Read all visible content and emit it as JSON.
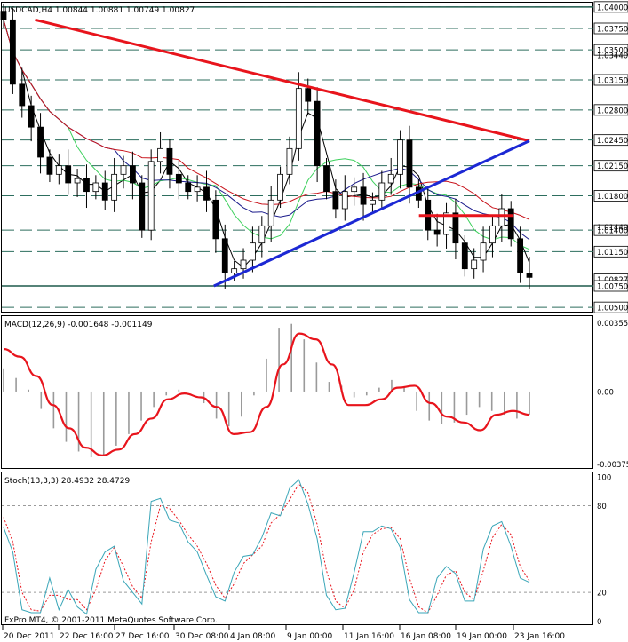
{
  "chart_data": [
    {
      "type": "line",
      "header": "USDCAD,H4  1.00844 1.00881 1.00749 1.00827",
      "price_labels": [
        "1.04000",
        "1.03750",
        "1.03500",
        "1.03150",
        "1.02800",
        "1.02450",
        "1.02150",
        "1.01800",
        "1.01400",
        "1.01150",
        "1.00827",
        "1.00750",
        "1.00500"
      ],
      "price_values": [
        1.04,
        1.0375,
        1.035,
        1.0315,
        1.028,
        1.0245,
        1.0215,
        1.018,
        1.014,
        1.0115,
        1.00827,
        1.0075,
        1.005
      ],
      "extra_axis_labels": [
        "1.03440",
        "1.01440"
      ],
      "extra_axis_values": [
        1.0344,
        1.0144
      ],
      "ylim": [
        1.0045,
        1.0405
      ],
      "current_price": 1.00827,
      "close_samples": [
        1.0385,
        1.031,
        1.0285,
        1.026,
        1.0225,
        1.0205,
        1.0215,
        1.0195,
        1.02,
        1.0185,
        1.0195,
        1.0175,
        1.0205,
        1.0215,
        1.0195,
        1.014,
        1.022,
        1.0235,
        1.0205,
        1.0195,
        1.0185,
        1.019,
        1.0175,
        1.013,
        1.009,
        1.0095,
        1.0105,
        1.0125,
        1.0145,
        1.0175,
        1.0205,
        1.0235,
        1.0305,
        1.029,
        1.0215,
        1.0185,
        1.0165,
        1.0185,
        1.019,
        1.017,
        1.0175,
        1.0195,
        1.0205,
        1.0245,
        1.019,
        1.0175,
        1.014,
        1.0135,
        1.016,
        1.0125,
        1.0095,
        1.0105,
        1.0125,
        1.0145,
        1.0165,
        1.013,
        1.009,
        1.0085
      ],
      "colors": {
        "trend_red": "#e8141c",
        "trend_blue": "#1c28d4",
        "ma_fast": "#000000",
        "ma_green": "#3cd05c",
        "ma_navy": "#1c1c8c",
        "ma_red": "#c8141c"
      }
    },
    {
      "type": "area",
      "header": "MACD(12,26,9) -0.001648 -0.001149",
      "axis_labels": [
        "0.003555",
        "0.00",
        "-0.003753"
      ],
      "axis_values": [
        0.003555,
        0.0,
        -0.003753
      ],
      "ylim": [
        -0.00395,
        0.0039
      ],
      "histogram": [
        0.0012,
        0.0007,
        0.0001,
        -0.0009,
        -0.0019,
        -0.0026,
        -0.0031,
        -0.0034,
        -0.0033,
        -0.0028,
        -0.0022,
        -0.0015,
        -0.0008,
        -0.0002,
        0.0001,
        0.0,
        -0.0006,
        -0.0014,
        -0.0018,
        -0.0013,
        -0.0002,
        0.0017,
        0.0033,
        0.0035,
        0.0027,
        0.0015,
        0.0005,
        0.0003,
        -0.0003,
        -0.0002,
        0.0002,
        0.0006,
        0.0002,
        -0.001,
        -0.0015,
        -0.0017,
        -0.0016,
        -0.0012,
        -0.0008,
        -0.001,
        -0.0012,
        -0.0014,
        -0.0012
      ],
      "signal": [
        0.0022,
        0.0018,
        0.0008,
        -0.0007,
        -0.0019,
        -0.0029,
        -0.0033,
        -0.003,
        -0.0022,
        -0.0014,
        -0.0004,
        -0.0001,
        -0.0003,
        -0.0008,
        -0.0022,
        -0.0021,
        -0.0008,
        0.0014,
        0.003,
        0.0027,
        0.0014,
        -0.0007,
        -0.0007,
        -0.0004,
        0.0002,
        0.0003,
        -0.0006,
        -0.0013,
        -0.0016,
        -0.002,
        -0.0012,
        -0.001,
        -0.0012
      ]
    },
    {
      "type": "line",
      "header": "Stoch(13,3,3) 28.4932 28.4729",
      "axis_labels": [
        "100",
        "80",
        "20",
        "0"
      ],
      "axis_values": [
        100,
        80,
        20,
        0
      ],
      "levels": [
        80,
        20
      ],
      "ylim": [
        -2,
        103
      ],
      "main": [
        65,
        48,
        8,
        6,
        6,
        30,
        8,
        22,
        10,
        5,
        36,
        48,
        52,
        28,
        20,
        12,
        83,
        85,
        70,
        68,
        55,
        48,
        32,
        17,
        14,
        34,
        45,
        46,
        58,
        75,
        73,
        92,
        98,
        81,
        57,
        18,
        8,
        9,
        34,
        62,
        62,
        66,
        64,
        51,
        15,
        6,
        6,
        30,
        38,
        33,
        14,
        14,
        50,
        66,
        69,
        52,
        30,
        27
      ],
      "signal": [
        72,
        55,
        20,
        8,
        7,
        18,
        18,
        15,
        15,
        8,
        22,
        42,
        51,
        38,
        24,
        16,
        55,
        80,
        78,
        70,
        60,
        52,
        40,
        25,
        16,
        26,
        40,
        46,
        52,
        68,
        74,
        84,
        95,
        89,
        67,
        35,
        14,
        9,
        22,
        48,
        60,
        64,
        65,
        57,
        30,
        10,
        6,
        18,
        32,
        35,
        20,
        15,
        35,
        58,
        67,
        60,
        38,
        28
      ]
    }
  ],
  "time_labels": [
    "20 Dec 2011",
    "22 Dec 16:00",
    "27 Dec 16:00",
    "30 Dec 08:00",
    "4 Jan 08:00",
    "9 Jan 00:00",
    "11 Jan 16:00",
    "16 Jan 08:00",
    "19 Jan 00:00",
    "23 Jan 16:00"
  ],
  "copyright": "FxPro MT4, © 2001-2011 MetaQuotes Software Corp."
}
